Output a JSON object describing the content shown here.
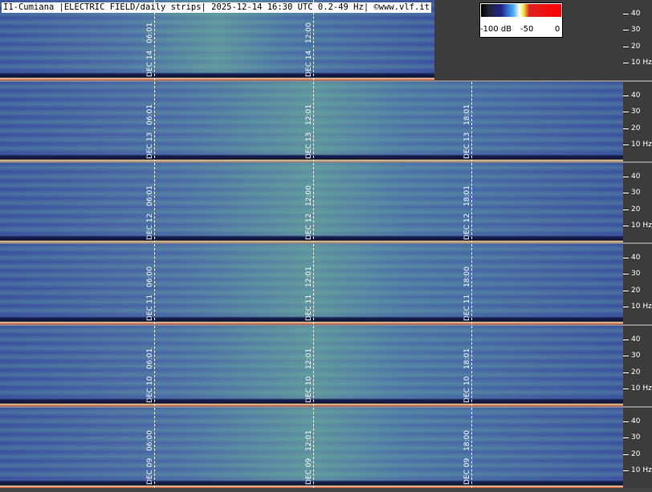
{
  "header": {
    "title": "I1-Cumiana |ELECTRIC FIELD/daily strips| 2025-12-14 16:30 UTC 0.2-49 Hz| ©www.vlf.it"
  },
  "colorbar": {
    "labels": [
      "-100 dB",
      "-50",
      "0"
    ]
  },
  "y_axis": {
    "labels": [
      "40",
      "30",
      "20",
      "10 Hz"
    ]
  },
  "strips": [
    {
      "date": "DEC 14",
      "times": [
        "06:01",
        "12:00"
      ]
    },
    {
      "date": "DEC 13",
      "times": [
        "06:01",
        "12:01",
        "18:01"
      ]
    },
    {
      "date": "DEC 12",
      "times": [
        "06:01",
        "12:00",
        "18:01"
      ]
    },
    {
      "date": "DEC 11",
      "times": [
        "06:00",
        "12:01",
        "18:00"
      ]
    },
    {
      "date": "DEC 10",
      "times": [
        "06:01",
        "12:01",
        "18:01"
      ]
    },
    {
      "date": "DEC 09",
      "times": [
        "06:00",
        "12:01",
        "18:00"
      ]
    }
  ]
}
